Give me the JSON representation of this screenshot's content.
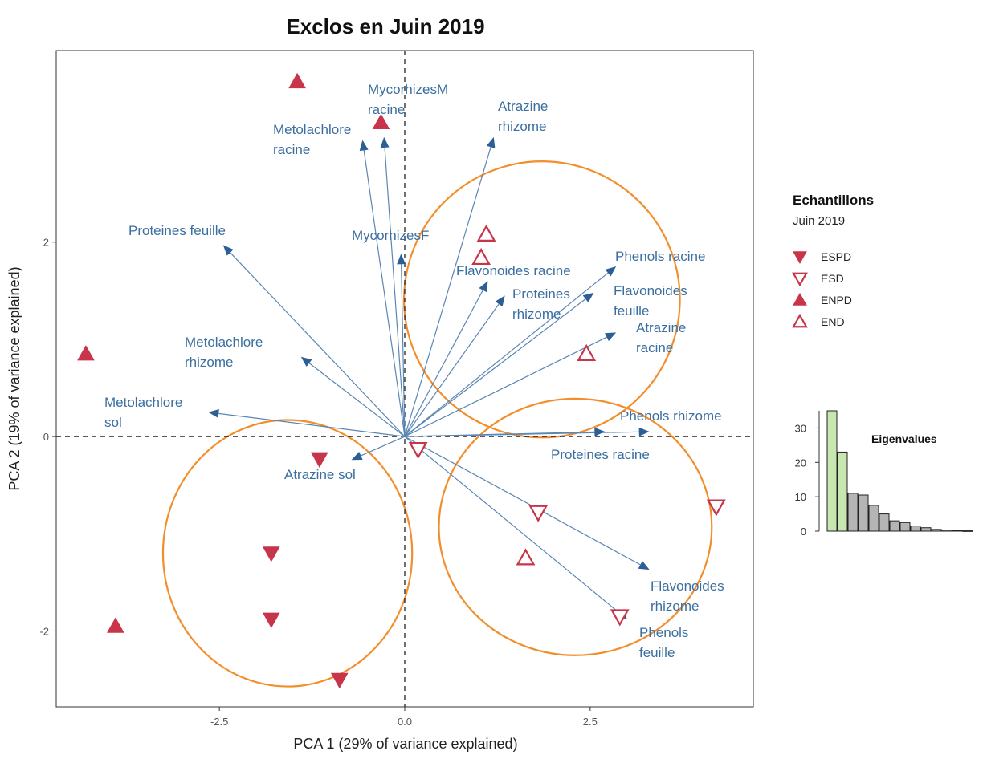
{
  "chart_data": {
    "type": "scatter",
    "title": "Exclos en Juin 2019",
    "xlabel": "PCA 1 (29% of variance explained)",
    "ylabel": "PCA 2 (19% of variance explained)",
    "xlim": [
      -4.7,
      4.7
    ],
    "ylim": [
      -2.78,
      3.97
    ],
    "xticks": [
      -2.5,
      0,
      2.5
    ],
    "xtick_labels": [
      "-2.5",
      "0.0",
      "2.5"
    ],
    "yticks": [
      -2,
      0,
      2
    ],
    "ytick_labels": [
      "-2",
      "0",
      "2"
    ],
    "reference_lines": "dashed at x=0 and y=0",
    "grid": false,
    "colors": {
      "points": "#c8344a",
      "arrows": "#2c5f96",
      "arrow_labels": "#3b6fa0",
      "ellipses": "#f28e2b",
      "eig_highlight": "#c8e6b0",
      "eig_bar": "#b5b5b5"
    },
    "groups": [
      {
        "name": "ESPD",
        "marker": "filled-down-triangle",
        "points": [
          [
            -1.15,
            -0.23
          ],
          [
            -1.8,
            -1.2
          ],
          [
            -1.8,
            -1.88
          ],
          [
            -0.88,
            -2.5
          ]
        ]
      },
      {
        "name": "ESD",
        "marker": "open-down-triangle",
        "points": [
          [
            0.18,
            -0.13
          ],
          [
            1.8,
            -0.78
          ],
          [
            2.9,
            -1.85
          ],
          [
            4.2,
            -0.72
          ]
        ]
      },
      {
        "name": "ENPD",
        "marker": "filled-up-triangle",
        "points": [
          [
            -1.45,
            3.65
          ],
          [
            -0.32,
            3.23
          ],
          [
            -4.3,
            0.85
          ],
          [
            -3.9,
            -1.95
          ]
        ]
      },
      {
        "name": "END",
        "marker": "open-up-triangle",
        "points": [
          [
            1.1,
            2.08
          ],
          [
            1.03,
            1.84
          ],
          [
            2.45,
            0.85
          ],
          [
            1.63,
            -1.25
          ]
        ]
      }
    ],
    "arrows": [
      {
        "label": "MycorhizesM\nracine",
        "x": -0.28,
        "y": 3.08
      },
      {
        "label": "Metolachlore\nracine",
        "x": -0.57,
        "y": 3.05
      },
      {
        "label": "Atrazine\nrhizome",
        "x": 1.2,
        "y": 3.08
      },
      {
        "label": "Proteines feuille",
        "x": -2.45,
        "y": 1.97
      },
      {
        "label": "MycorhizesF",
        "x": -0.05,
        "y": 1.88
      },
      {
        "label": "Flavonoides  racine",
        "x": 1.12,
        "y": 1.6
      },
      {
        "label": "Phenols racine",
        "x": 2.85,
        "y": 1.75
      },
      {
        "label": "Proteines\nrhizome",
        "x": 1.35,
        "y": 1.45
      },
      {
        "label": "Flavonoides\nfeuille",
        "x": 2.55,
        "y": 1.48
      },
      {
        "label": "Atrazine\nracine",
        "x": 2.85,
        "y": 1.07
      },
      {
        "label": "Metolachlore\nrhizome",
        "x": -1.4,
        "y": 0.82
      },
      {
        "label": "Metolachlore\nsol",
        "x": -2.65,
        "y": 0.25
      },
      {
        "label": "Atrazine sol",
        "x": -0.72,
        "y": -0.24
      },
      {
        "label": "Phenols rhizome",
        "x": 3.3,
        "y": 0.05
      },
      {
        "label": "Proteines racine",
        "x": 2.7,
        "y": 0.05
      },
      {
        "label": "Flavonoides\nrhizome",
        "x": 3.3,
        "y": -1.37
      },
      {
        "label": "Phenols\nfeuille",
        "x": 3.0,
        "y": -1.88
      }
    ],
    "legend": {
      "title": "Echantillons",
      "subtitle": "Juin 2019",
      "entries": [
        "ESPD",
        "ESD",
        "ENPD",
        "END"
      ],
      "position": "right"
    },
    "eigenvalues": {
      "title": "Eigenvalues",
      "values": [
        35,
        23,
        11,
        10.5,
        7.5,
        5,
        3,
        2.5,
        1.5,
        1,
        0.5,
        0.3,
        0.2,
        0.1
      ],
      "highlighted": 2,
      "yticks": [
        0,
        10,
        20,
        30
      ],
      "ymax": 35
    }
  }
}
